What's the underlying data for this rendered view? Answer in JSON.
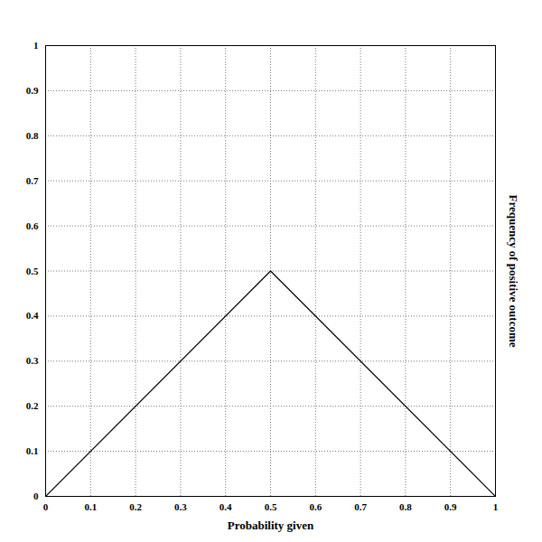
{
  "chart_data": {
    "type": "line",
    "x_label": "Probability given",
    "y_label": "Frequency of positive outcome",
    "x": [
      0,
      0.5,
      1
    ],
    "values": [
      0,
      0.5,
      0
    ],
    "color": "#000000",
    "xlim": [
      0,
      1
    ],
    "ylim": [
      0,
      1
    ],
    "xticks": [
      0,
      0.1,
      0.2,
      0.3,
      0.4,
      0.5,
      0.6,
      0.7,
      0.8,
      0.9,
      1
    ],
    "yticks": [
      0,
      0.1,
      0.2,
      0.3,
      0.4,
      0.5,
      0.6,
      0.7,
      0.8,
      0.9,
      1
    ],
    "grid": true
  }
}
